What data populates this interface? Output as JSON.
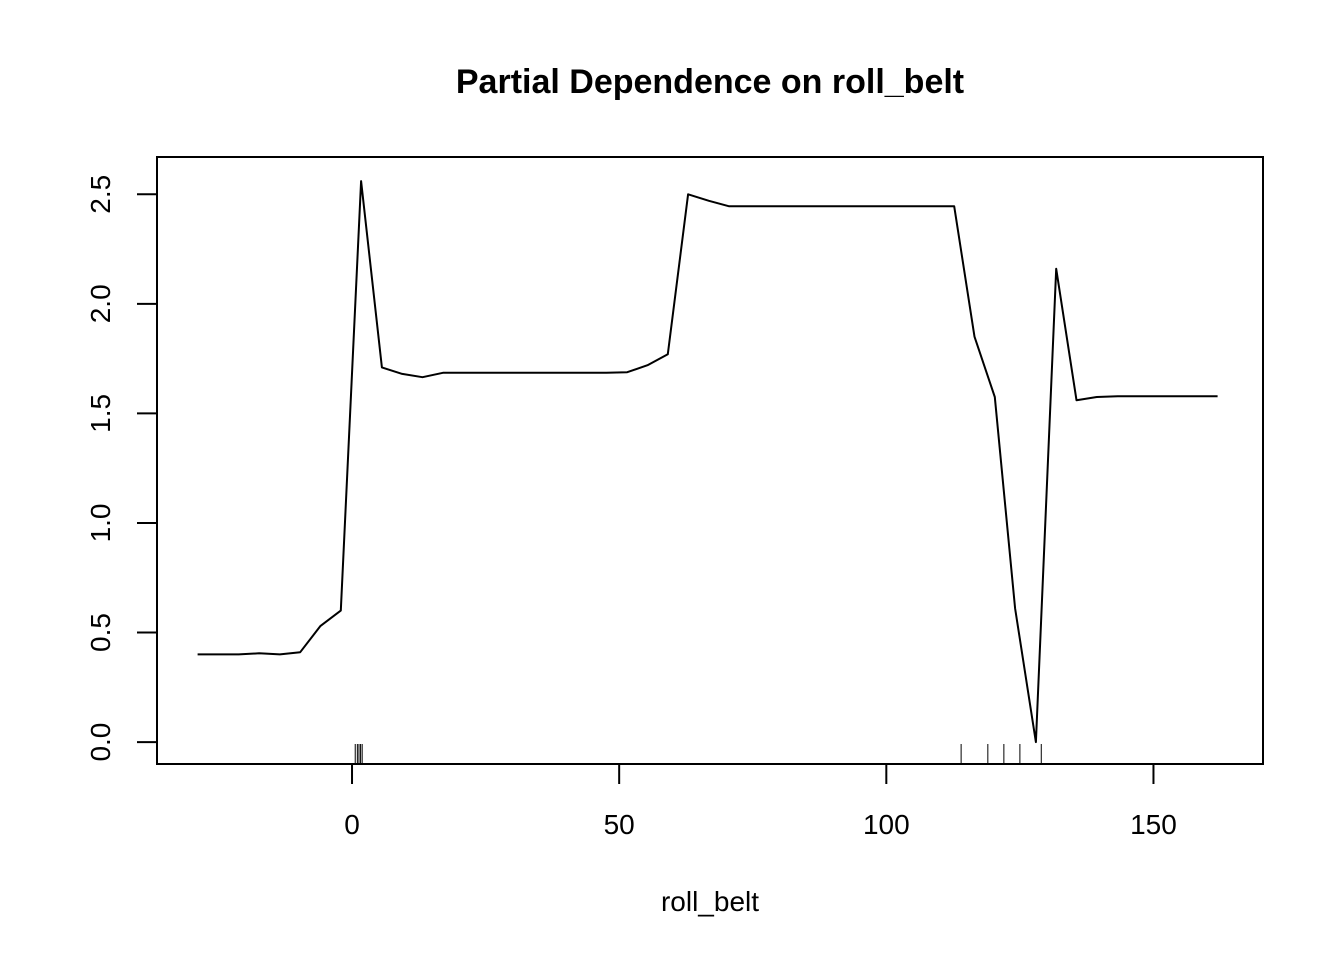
{
  "chart_data": {
    "type": "line",
    "title": "Partial Dependence on roll_belt",
    "xlabel": "roll_belt",
    "ylabel": "",
    "xlim": [
      -36.5,
      170.5
    ],
    "ylim": [
      -0.1,
      2.67
    ],
    "x_ticks": [
      0,
      50,
      100,
      150
    ],
    "x_tick_labels": [
      "0",
      "50",
      "100",
      "150"
    ],
    "y_ticks": [
      0.0,
      0.5,
      1.0,
      1.5,
      2.0,
      2.5
    ],
    "y_tick_labels": [
      "0.0",
      "0.5",
      "1.0",
      "1.5",
      "2.0",
      "2.5"
    ],
    "grid": false,
    "legend": "none",
    "line_color": "#000000",
    "series": [
      {
        "x": [
          -28.9,
          -21.2,
          -17.4,
          -13.5,
          -9.7,
          -5.9,
          -2.1,
          1.7,
          5.6,
          9.4,
          13.2,
          17.0,
          20.9,
          24.7,
          28.5,
          32.3,
          36.2,
          40.0,
          43.8,
          47.6,
          51.5,
          55.3,
          59.1,
          62.9,
          66.8,
          70.6,
          74.4,
          78.2,
          82.1,
          85.9,
          89.7,
          93.5,
          97.4,
          101.2,
          105.0,
          108.8,
          112.7,
          116.5,
          120.3,
          124.1,
          128.0,
          131.8,
          135.6,
          139.4,
          143.3,
          147.1,
          150.9,
          154.7,
          158.6,
          162.0
        ],
        "y": [
          0.4,
          0.4,
          0.405,
          0.4,
          0.41,
          0.53,
          0.6,
          2.56,
          1.71,
          1.68,
          1.665,
          1.685,
          1.685,
          1.685,
          1.685,
          1.685,
          1.685,
          1.685,
          1.685,
          1.685,
          1.688,
          1.72,
          1.77,
          2.5,
          2.47,
          2.445,
          2.445,
          2.445,
          2.445,
          2.445,
          2.445,
          2.445,
          2.445,
          2.445,
          2.445,
          2.445,
          2.445,
          1.85,
          1.575,
          0.61,
          0.0,
          2.16,
          1.56,
          1.575,
          1.578,
          1.578,
          1.578,
          1.578,
          1.578,
          1.578
        ]
      }
    ],
    "rug": [
      0.6,
      1.0,
      1.3,
      1.6,
      1.9,
      114.0,
      119.0,
      122.0,
      125.0,
      129.0
    ]
  }
}
